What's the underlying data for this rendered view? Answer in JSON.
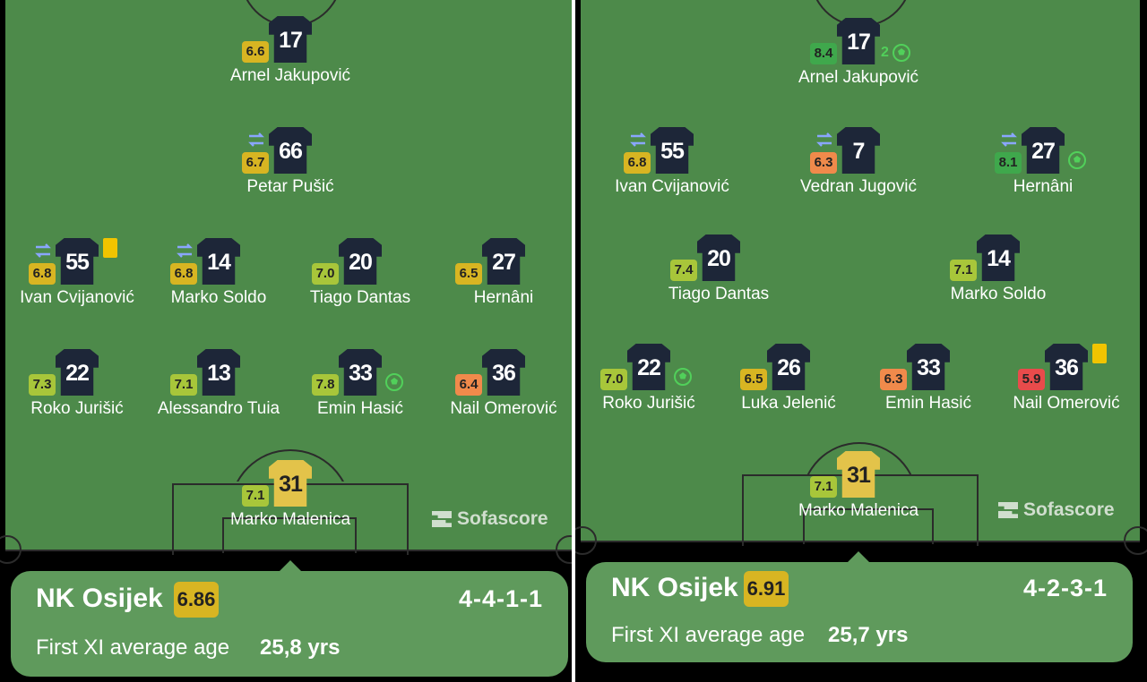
{
  "colors": {
    "pitch": "#4d8a4a",
    "card": "#5f9a5c",
    "shirt_outfield": "#1d2638",
    "shirt_goalkeeper": "#e3c34a",
    "rating_yellow": "#d8b522",
    "rating_yellowgreen": "#a8c63a",
    "rating_green": "#3fa84c",
    "rating_orange": "#f08a4b",
    "rating_red": "#e84b4b",
    "sub_icon": "#8aa6ff",
    "goal_icon": "#51d05a",
    "yellow_card": "#f1c400"
  },
  "brand": {
    "name": "Sofascore"
  },
  "lineups": [
    {
      "team": "NK Osijek",
      "team_rating": "6.86",
      "formation": "4-4-1-1",
      "age_label": "First XI average age",
      "age_value": "25,8 yrs",
      "players": [
        {
          "number": "17",
          "name": "Arnel Jakupović",
          "rating": "6.6",
          "rating_color": "#d8b522",
          "position": "forward"
        },
        {
          "number": "66",
          "name": "Petar Pušić",
          "rating": "6.7",
          "rating_color": "#d8b522",
          "sub": true,
          "position": "attacking-mid"
        },
        {
          "number": "55",
          "name": "Ivan Cvijanović",
          "rating": "6.8",
          "rating_color": "#d8b522",
          "sub": true,
          "yellow": true,
          "position": "midfield"
        },
        {
          "number": "14",
          "name": "Marko Soldo",
          "rating": "6.8",
          "rating_color": "#d8b522",
          "sub": true,
          "position": "midfield"
        },
        {
          "number": "20",
          "name": "Tiago Dantas",
          "rating": "7.0",
          "rating_color": "#a8c63a",
          "position": "midfield"
        },
        {
          "number": "27",
          "name": "Hernâni",
          "rating": "6.5",
          "rating_color": "#d8b522",
          "position": "midfield"
        },
        {
          "number": "22",
          "name": "Roko Jurišić",
          "rating": "7.3",
          "rating_color": "#a8c63a",
          "position": "defence"
        },
        {
          "number": "13",
          "name": "Alessandro Tuia",
          "rating": "7.1",
          "rating_color": "#a8c63a",
          "position": "defence"
        },
        {
          "number": "33",
          "name": "Emin Hasić",
          "rating": "7.8",
          "rating_color": "#a8c63a",
          "goal": true,
          "position": "defence"
        },
        {
          "number": "36",
          "name": "Nail Omerović",
          "rating": "6.4",
          "rating_color": "#f08a4b",
          "position": "defence"
        },
        {
          "number": "31",
          "name": "Marko Malenica",
          "rating": "7.1",
          "rating_color": "#a8c63a",
          "gk": true,
          "position": "goalkeeper"
        }
      ]
    },
    {
      "team": "NK Osijek",
      "team_rating": "6.91",
      "formation": "4-2-3-1",
      "age_label": "First XI average age",
      "age_value": "25,7 yrs",
      "players": [
        {
          "number": "17",
          "name": "Arnel Jakupović",
          "rating": "8.4",
          "rating_color": "#3fa84c",
          "goals": "2",
          "position": "forward"
        },
        {
          "number": "55",
          "name": "Ivan Cvijanović",
          "rating": "6.8",
          "rating_color": "#d8b522",
          "sub": true,
          "position": "attacking-mid"
        },
        {
          "number": "7",
          "name": "Vedran Jugović",
          "rating": "6.3",
          "rating_color": "#f08a4b",
          "sub": true,
          "position": "attacking-mid"
        },
        {
          "number": "27",
          "name": "Hernâni",
          "rating": "8.1",
          "rating_color": "#3fa84c",
          "sub": true,
          "goal": true,
          "position": "attacking-mid"
        },
        {
          "number": "20",
          "name": "Tiago Dantas",
          "rating": "7.4",
          "rating_color": "#a8c63a",
          "position": "midfield"
        },
        {
          "number": "14",
          "name": "Marko Soldo",
          "rating": "7.1",
          "rating_color": "#a8c63a",
          "position": "midfield"
        },
        {
          "number": "22",
          "name": "Roko Jurišić",
          "rating": "7.0",
          "rating_color": "#a8c63a",
          "goal": true,
          "position": "defence"
        },
        {
          "number": "26",
          "name": "Luka Jelenić",
          "rating": "6.5",
          "rating_color": "#d8b522",
          "position": "defence"
        },
        {
          "number": "33",
          "name": "Emin Hasić",
          "rating": "6.3",
          "rating_color": "#f08a4b",
          "position": "defence"
        },
        {
          "number": "36",
          "name": "Nail Omerović",
          "rating": "5.9",
          "rating_color": "#e84b4b",
          "yellow": true,
          "position": "defence"
        },
        {
          "number": "31",
          "name": "Marko Malenica",
          "rating": "7.1",
          "rating_color": "#a8c63a",
          "gk": true,
          "position": "goalkeeper"
        }
      ]
    }
  ]
}
